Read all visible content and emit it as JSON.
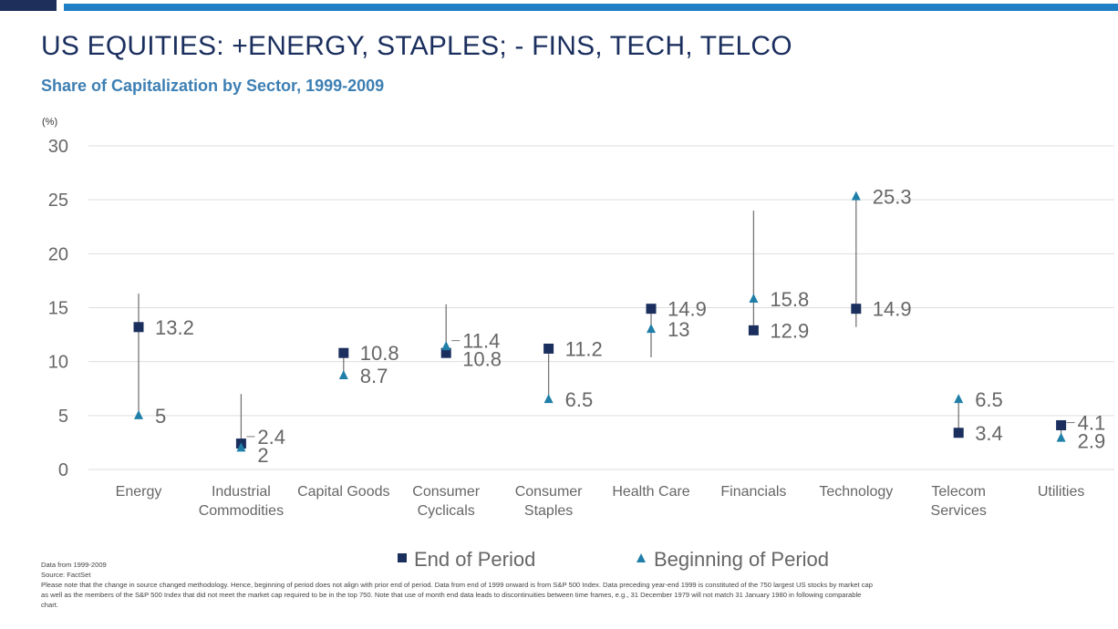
{
  "title": "US EQUITIES: +ENERGY, STAPLES; - FINS, TECH, TELCO",
  "subtitle": "Share of Capitalization by Sector, 1999-2009",
  "colors": {
    "title": "#1b2f5e",
    "subtitle": "#3d7fb3",
    "end_marker": "#1b2f5e",
    "beginning_marker": "#1f7fa8",
    "range_line": "#777777",
    "grid": "#dddddd",
    "axis_text": "#666666"
  },
  "notes": {
    "line1": "Data from 1999-2009",
    "line2": "Source: FactSet",
    "line3": "Please note that the change in source changed methodology. Hence, beginning of period does not align with prior end of period. Data from end of 1999 onward is from S&P 500 Index. Data preceding year-end 1999 is constituted of the 750 largest US stocks by market cap as well as the members of the S&P 500 Index that did not meet the market cap required to be in the top 750. Note that use of month end data leads to discontinuities between time frames, e.g., 31 December 1979 will not match 31 January 1980 in following comparable chart."
  },
  "chart_data": {
    "type": "scatter",
    "ylabel": "(%)",
    "ylim": [
      0,
      30
    ],
    "yticks": [
      0,
      5,
      10,
      15,
      20,
      25,
      30
    ],
    "grid": true,
    "legend_position": "bottom-center",
    "categories": [
      [
        "Energy"
      ],
      [
        "Industrial",
        "Commodities"
      ],
      [
        "Capital Goods"
      ],
      [
        "Consumer",
        "Cyclicals"
      ],
      [
        "Consumer",
        "Staples"
      ],
      [
        "Health Care"
      ],
      [
        "Financials"
      ],
      [
        "Technology"
      ],
      [
        "Telecom",
        "Services"
      ],
      [
        "Utilities"
      ]
    ],
    "series": [
      {
        "name": "End of Period",
        "marker": "square",
        "values": [
          13.2,
          2.4,
          10.8,
          10.8,
          11.2,
          14.9,
          12.9,
          14.9,
          3.4,
          4.1
        ]
      },
      {
        "name": "Beginning of Period",
        "marker": "triangle",
        "values": [
          5,
          2,
          8.7,
          11.4,
          6.5,
          13,
          15.8,
          25.3,
          6.5,
          2.9
        ]
      }
    ],
    "ranges": [
      [
        5,
        16.3
      ],
      [
        2,
        7
      ],
      [
        8.7,
        10.8
      ],
      [
        10.8,
        15.3
      ],
      [
        6.5,
        11.2
      ],
      [
        10.4,
        14.9
      ],
      [
        12.9,
        24
      ],
      [
        13.2,
        25.3
      ],
      [
        3.4,
        6.5
      ],
      [
        2.9,
        4.1
      ]
    ]
  }
}
